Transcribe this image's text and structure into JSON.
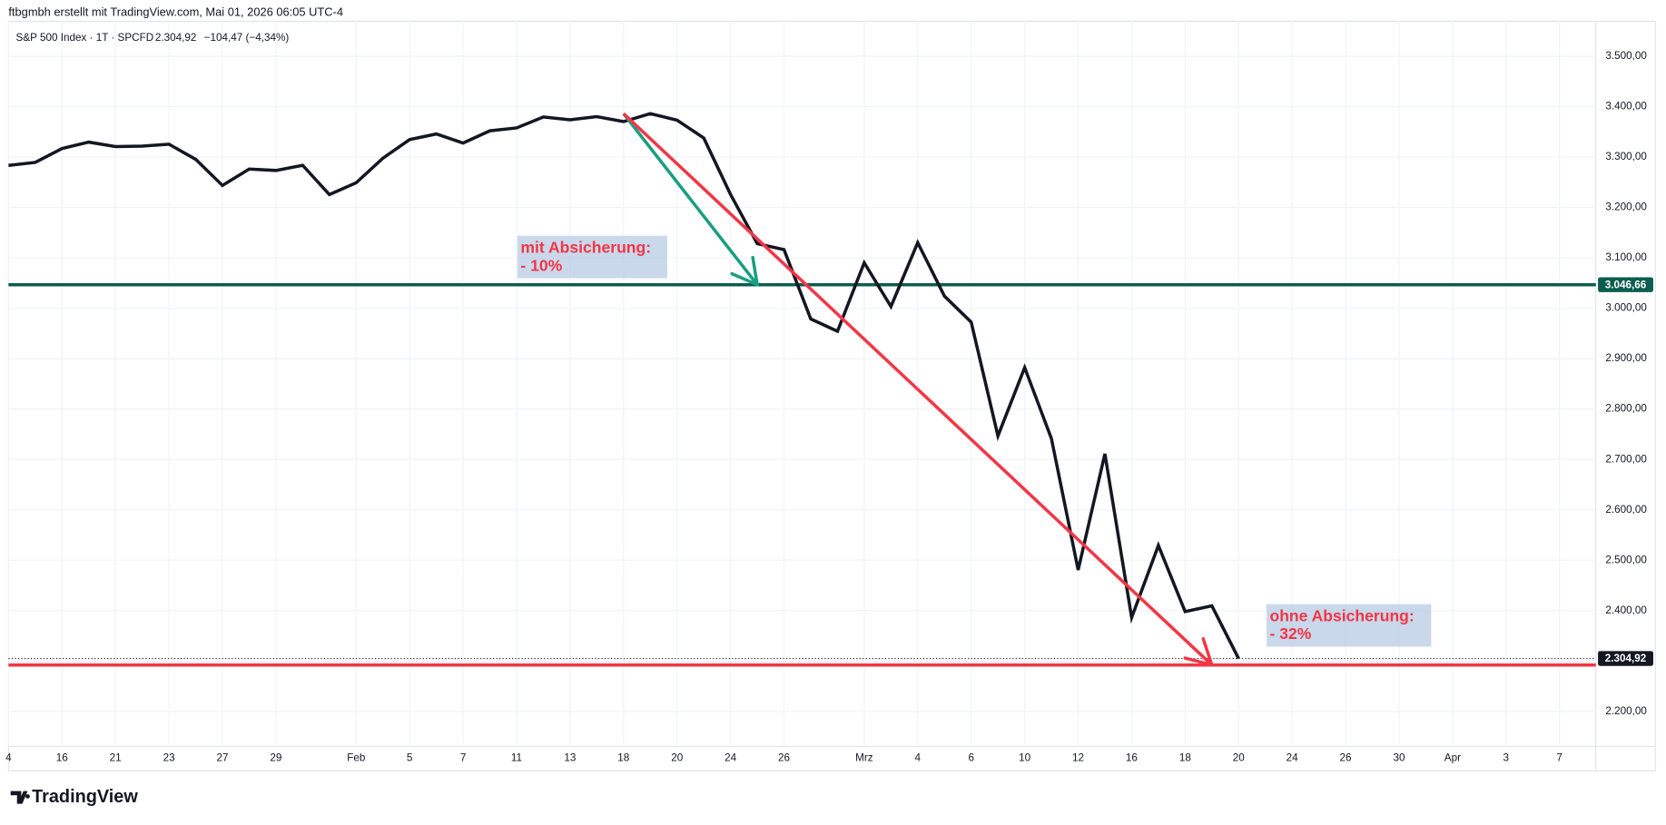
{
  "header": "ftbgmbh erstellt mit TradingView.com, Mai 01, 2026 06:05 UTC-4",
  "footer_logo": "TradingView",
  "chart_data": {
    "type": "line",
    "legend": {
      "symbol": "S&P 500 Index · 1T · SPCFD",
      "last": "2.304,92",
      "change": "−104,47 (−4,34%)"
    },
    "series": [
      {
        "name": "S&P 500 Index",
        "color": "#131722",
        "values": [
          3283.35,
          3289.29,
          3316.81,
          3329.62,
          3320.79,
          3321.75,
          3325.54,
          3295.47,
          3243.63,
          3276.24,
          3273.4,
          3283.66,
          3225.52,
          3248.92,
          3297.59,
          3334.69,
          3345.78,
          3327.71,
          3352.09,
          3357.75,
          3379.45,
          3373.94,
          3380.16,
          3370.29,
          3386.15,
          3373.23,
          3337.75,
          3225.89,
          3128.21,
          3116.39,
          2978.76,
          2954.22,
          3090.23,
          3003.37,
          3130.12,
          3023.94,
          2972.37,
          2746.56,
          2882.23,
          2741.38,
          2480.64,
          2711.02,
          2386.13,
          2529.19,
          2398.1,
          2409.39,
          2304.92
        ]
      }
    ],
    "xlim": [
      0,
      59.36
    ],
    "ylim": [
      2130.4,
      3569.5
    ],
    "xticks": [
      {
        "value": 0,
        "label": "4"
      },
      {
        "value": 2,
        "label": "16"
      },
      {
        "value": 4,
        "label": "21"
      },
      {
        "value": 6,
        "label": "23"
      },
      {
        "value": 8,
        "label": "27"
      },
      {
        "value": 10,
        "label": "29"
      },
      {
        "value": 13,
        "label": "Feb"
      },
      {
        "value": 15,
        "label": "5"
      },
      {
        "value": 17,
        "label": "7"
      },
      {
        "value": 19,
        "label": "11"
      },
      {
        "value": 21,
        "label": "13"
      },
      {
        "value": 23,
        "label": "18"
      },
      {
        "value": 25,
        "label": "20"
      },
      {
        "value": 27,
        "label": "24"
      },
      {
        "value": 29,
        "label": "26"
      },
      {
        "value": 32,
        "label": "Mrz"
      },
      {
        "value": 34,
        "label": "4"
      },
      {
        "value": 36,
        "label": "6"
      },
      {
        "value": 38,
        "label": "10"
      },
      {
        "value": 40,
        "label": "12"
      },
      {
        "value": 42,
        "label": "16"
      },
      {
        "value": 44,
        "label": "18"
      },
      {
        "value": 46,
        "label": "20"
      },
      {
        "value": 48,
        "label": "24"
      },
      {
        "value": 50,
        "label": "26"
      },
      {
        "value": 52,
        "label": "30"
      },
      {
        "value": 54,
        "label": "Apr"
      },
      {
        "value": 56,
        "label": "3"
      },
      {
        "value": 58,
        "label": "7"
      }
    ],
    "yticks": [
      {
        "value": 2200,
        "label": "2.200,00"
      },
      {
        "value": 2300,
        "label": "2.300,00"
      },
      {
        "value": 2400,
        "label": "2.400,00"
      },
      {
        "value": 2500,
        "label": "2.500,00"
      },
      {
        "value": 2600,
        "label": "2.600,00"
      },
      {
        "value": 2700,
        "label": "2.700,00"
      },
      {
        "value": 2800,
        "label": "2.800,00"
      },
      {
        "value": 2900,
        "label": "2.900,00"
      },
      {
        "value": 3000,
        "label": "3.000,00"
      },
      {
        "value": 3100,
        "label": "3.100,00"
      },
      {
        "value": 3200,
        "label": "3.200,00"
      },
      {
        "value": 3300,
        "label": "3.300,00"
      },
      {
        "value": 3400,
        "label": "3.400,00"
      },
      {
        "value": 3500,
        "label": "3.500,00"
      }
    ],
    "grid": true,
    "hlines": [
      {
        "value": 3046.66,
        "label": "3.046,66",
        "color": "#0b5d4f"
      },
      {
        "value": 2304.92,
        "label": "2.304,92",
        "color": "#131722",
        "style": "dotted"
      },
      {
        "value": 2292,
        "color": "#f23645"
      }
    ],
    "arrows": [
      {
        "from": [
          23,
          3386.15
        ],
        "to": [
          28,
          3046.66
        ],
        "color": "#1a9e82"
      },
      {
        "from": [
          23,
          3386.15
        ],
        "to": [
          45,
          2292
        ],
        "color": "#f23645"
      }
    ],
    "annotations": [
      {
        "lines": [
          "mit Absicherung:",
          "- 10%"
        ]
      },
      {
        "lines": [
          "ohne Absicherung:",
          "- 32%"
        ]
      }
    ]
  }
}
